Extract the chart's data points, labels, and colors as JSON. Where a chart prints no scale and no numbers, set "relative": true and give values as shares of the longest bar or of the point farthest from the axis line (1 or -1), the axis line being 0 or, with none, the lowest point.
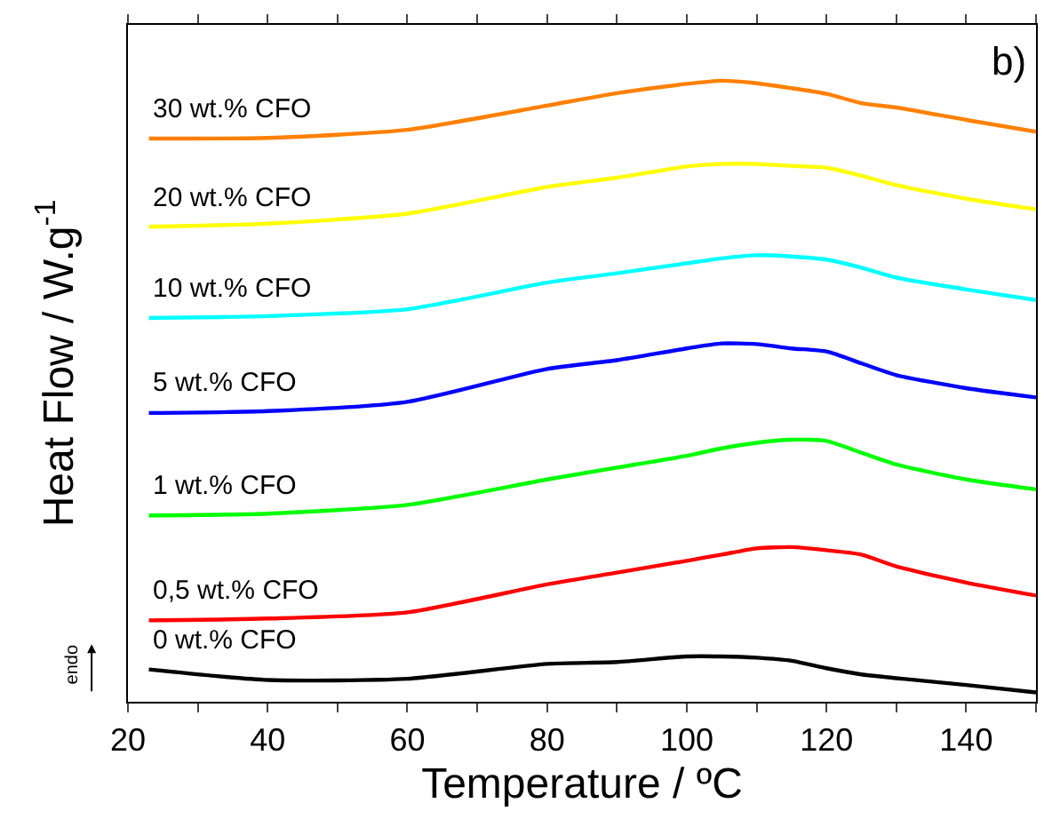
{
  "chart_data": {
    "type": "line",
    "relative": true,
    "xlabel": "Temperature / ºC",
    "ylabel": "Heat Flow / W.g$^{-1}$",
    "x": [
      23,
      40,
      60,
      80,
      90,
      100,
      105,
      110,
      115,
      120,
      125,
      130,
      140,
      150
    ],
    "xlim": [
      20,
      150
    ],
    "xticks": [
      20,
      {
        "value": 30,
        "label": null
      },
      40,
      {
        "value": 50,
        "label": null
      },
      60,
      {
        "value": 70,
        "label": null
      },
      80,
      {
        "value": 90,
        "label": null
      },
      100,
      {
        "value": 110,
        "label": null
      },
      120,
      {
        "value": 130,
        "label": null
      },
      140,
      {
        "value": 150,
        "label": null
      }
    ],
    "marker": "none",
    "line_style": "solid",
    "series": [
      {
        "name": "0 wt.% CFO",
        "color": "#000000",
        "values": [
          0.052,
          0.035,
          0.037,
          0.061,
          0.064,
          0.073,
          0.073,
          0.071,
          0.066,
          0.054,
          0.044,
          0.038,
          0.027,
          0.015
        ]
      },
      {
        "name": "0,5 wt.% CFO",
        "color": "#ff0000",
        "values": [
          0.131,
          0.134,
          0.144,
          0.189,
          0.208,
          0.227,
          0.237,
          0.247,
          0.249,
          0.244,
          0.237,
          0.218,
          0.192,
          0.171
        ]
      },
      {
        "name": "1 wt.% CFO",
        "color": "#00ff00",
        "values": [
          0.3,
          0.303,
          0.317,
          0.358,
          0.377,
          0.396,
          0.408,
          0.417,
          0.422,
          0.42,
          0.401,
          0.382,
          0.358,
          0.342
        ]
      },
      {
        "name": "5 wt.% CFO",
        "color": "#0000ff",
        "values": [
          0.465,
          0.468,
          0.483,
          0.536,
          0.55,
          0.569,
          0.577,
          0.576,
          0.569,
          0.564,
          0.545,
          0.526,
          0.505,
          0.49
        ]
      },
      {
        "name": "10 wt.% CFO",
        "color": "#00ffff",
        "values": [
          0.618,
          0.621,
          0.632,
          0.675,
          0.69,
          0.706,
          0.714,
          0.719,
          0.717,
          0.712,
          0.699,
          0.683,
          0.664,
          0.647
        ]
      },
      {
        "name": "20 wt.% CFO",
        "color": "#ffff00",
        "values": [
          0.765,
          0.77,
          0.786,
          0.829,
          0.844,
          0.862,
          0.866,
          0.866,
          0.863,
          0.86,
          0.847,
          0.832,
          0.81,
          0.793
        ]
      },
      {
        "name": "30 wt.% CFO",
        "color": "#ff8000",
        "values": [
          0.907,
          0.908,
          0.921,
          0.96,
          0.98,
          0.995,
          1.0,
          0.996,
          0.988,
          0.979,
          0.964,
          0.957,
          0.937,
          0.918
        ]
      }
    ],
    "annotations": [
      "b)",
      "endo"
    ]
  }
}
